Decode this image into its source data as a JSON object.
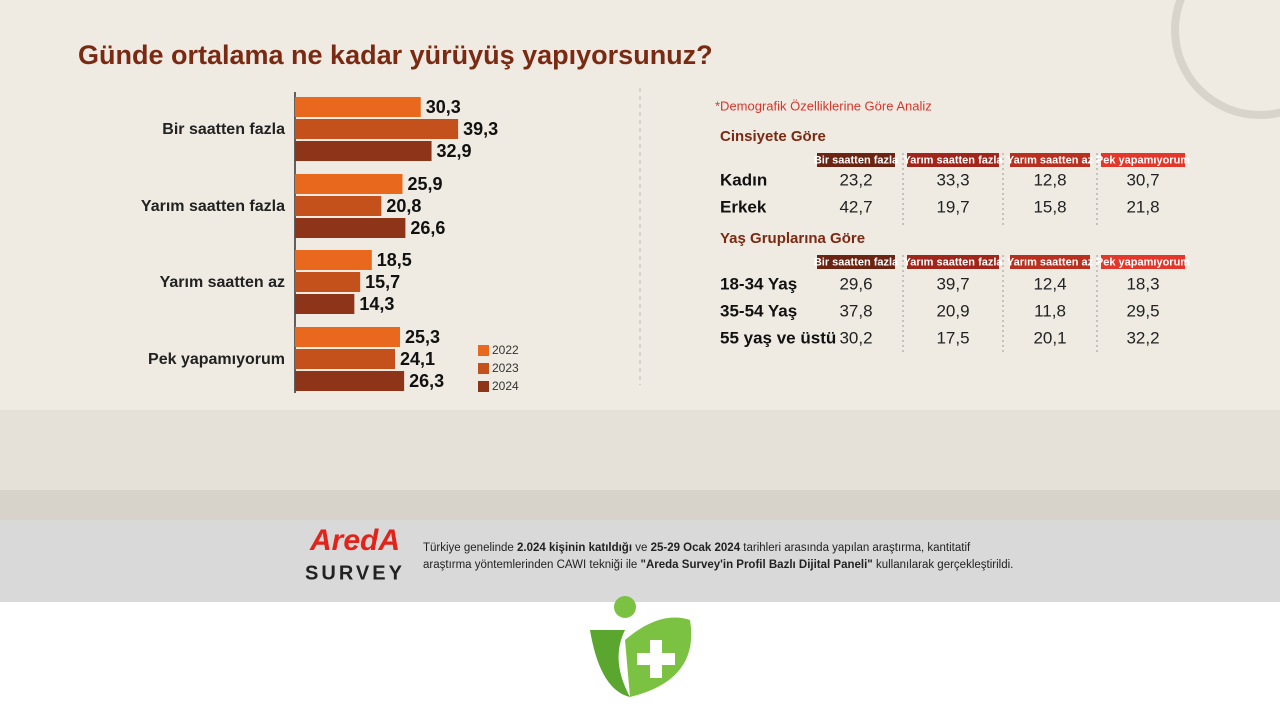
{
  "chart_data": {
    "type": "bar",
    "orientation": "horizontal",
    "title": "Günde ortalama ne kadar yürüyüş yapıyorsunuz?",
    "categories": [
      "Bir saatten fazla",
      "Yarım saatten fazla",
      "Yarım saatten az",
      "Pek yapamıyorum"
    ],
    "series": [
      {
        "name": "2022",
        "color": "#e8681e",
        "values": [
          30.3,
          25.9,
          18.5,
          25.3
        ],
        "value_labels": [
          "30,3",
          "25,9",
          "18,5",
          "25,3"
        ]
      },
      {
        "name": "2023",
        "color": "#c4501b",
        "values": [
          39.3,
          20.8,
          15.7,
          24.1
        ],
        "value_labels": [
          "39,3",
          "20,8",
          "15,7",
          "24,1"
        ]
      },
      {
        "name": "2024",
        "color": "#8e3418",
        "values": [
          32.9,
          26.6,
          14.3,
          26.3
        ],
        "value_labels": [
          "32,9",
          "26,6",
          "14,3",
          "26,3"
        ]
      }
    ]
  },
  "analysis": {
    "note": "*Demografik Özelliklerine Göre Analiz",
    "tables": [
      {
        "title": "Cinsiyete Göre",
        "columns": [
          "Bir saatten fazla",
          "Yarım saatten fazla",
          "Yarım saatten az",
          "Pek yapamıyorum"
        ],
        "rows": [
          {
            "label": "Kadın",
            "values": [
              "23,2",
              "33,3",
              "12,8",
              "30,7"
            ]
          },
          {
            "label": "Erkek",
            "values": [
              "42,7",
              "19,7",
              "15,8",
              "21,8"
            ]
          }
        ]
      },
      {
        "title": "Yaş Gruplarına Göre",
        "columns": [
          "Bir saatten fazla",
          "Yarım saatten fazla",
          "Yarım saatten az",
          "Pek yapamıyorum"
        ],
        "rows": [
          {
            "label": "18-34 Yaş",
            "values": [
              "29,6",
              "39,7",
              "12,4",
              "18,3"
            ]
          },
          {
            "label": "35-54 Yaş",
            "values": [
              "37,8",
              "20,9",
              "11,8",
              "29,5"
            ]
          },
          {
            "label": "55 yaş ve üstü",
            "values": [
              "30,2",
              "17,5",
              "20,1",
              "32,2"
            ]
          }
        ]
      }
    ]
  },
  "footer": {
    "brand": "AredA",
    "brand_sub": "SURVEY",
    "lines": [
      [
        {
          "text": "Türkiye genelinde "
        },
        {
          "text": "2.024 kişinin katıldığı",
          "bold": true
        },
        {
          "text": " ve "
        },
        {
          "text": "25-29 Ocak 2024",
          "bold": true
        },
        {
          "text": " tarihleri arasında yapılan araştırma, kantitatif"
        }
      ],
      [
        {
          "text": "araştırma yöntemlerinden CAWI tekniği ile "
        },
        {
          "text": "\"Areda Survey'in Profil Bazlı Dijital Paneli\"",
          "bold": true
        },
        {
          "text": " kullanılarak gerçekleştirildi."
        }
      ]
    ]
  }
}
